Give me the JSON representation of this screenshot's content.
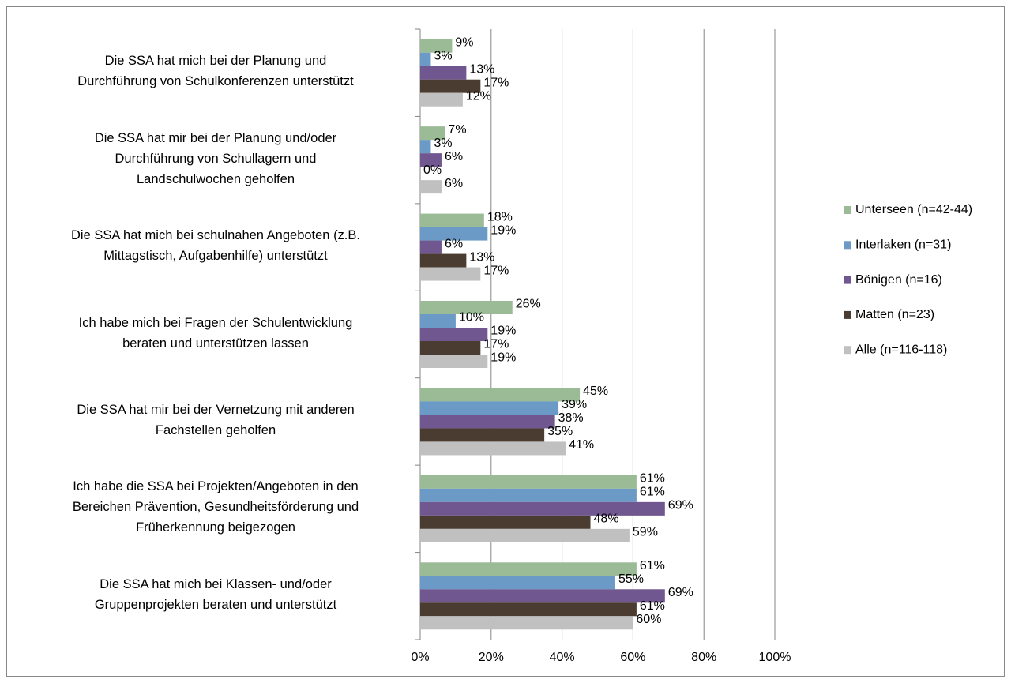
{
  "chart_data": {
    "type": "bar",
    "orientation": "horizontal",
    "categories": [
      "Die SSA hat mich bei der Planung und\nDurchführung von Schulkonferenzen unterstützt",
      "Die SSA hat mir bei der Planung und/oder\nDurchführung von Schullagern und\nLandschulwochen geholfen",
      "Die SSA hat mich bei schulnahen Angeboten (z.B.\nMittagstisch, Aufgabenhilfe) unterstützt",
      "Ich habe mich bei Fragen der Schulentwicklung\nberaten und unterstützen lassen",
      "Die SSA hat mir bei der Vernetzung mit anderen\nFachstellen geholfen",
      "Ich habe die SSA bei Projekten/Angeboten in den\nBereichen Prävention, Gesundheitsförderung und\nFrüherkennung beigezogen",
      "Die SSA hat mich bei Klassen- und/oder\nGruppenprojekten beraten und unterstützt"
    ],
    "series": [
      {
        "name": "Unterseen (n=42-44)",
        "color": "#9bbb97",
        "values": [
          9,
          7,
          18,
          26,
          45,
          61,
          61
        ],
        "value_labels": [
          "9%",
          "7%",
          "18%",
          "26%",
          "45%",
          "61%",
          "61%"
        ]
      },
      {
        "name": "Interlaken (n=31)",
        "color": "#6a9ac5",
        "values": [
          3,
          3,
          19,
          10,
          39,
          61,
          55
        ],
        "value_labels": [
          "3%",
          "3%",
          "19%",
          "10%",
          "39%",
          "61%",
          "55%"
        ]
      },
      {
        "name": "Bönigen (n=16)",
        "color": "#70578f",
        "values": [
          13,
          6,
          6,
          19,
          38,
          69,
          69
        ],
        "value_labels": [
          "13%",
          "6%",
          "6%",
          "19%",
          "38%",
          "69%",
          "69%"
        ]
      },
      {
        "name": "Matten (n=23)",
        "color": "#4a3c31",
        "values": [
          17,
          0,
          13,
          17,
          35,
          48,
          61
        ],
        "value_labels": [
          "17%",
          "0%",
          "13%",
          "17%",
          "35%",
          "48%",
          "61%"
        ]
      },
      {
        "name": "Alle (n=116-118)",
        "color": "#c0c0c0",
        "values": [
          12,
          6,
          17,
          19,
          41,
          59,
          60
        ],
        "value_labels": [
          "12%",
          "6%",
          "17%",
          "19%",
          "41%",
          "59%",
          "60%"
        ]
      }
    ],
    "xlim": [
      0,
      100
    ],
    "xticks": [
      {
        "value": 0,
        "label": "0%"
      },
      {
        "value": 20,
        "label": "20%"
      },
      {
        "value": 40,
        "label": "40%"
      },
      {
        "value": 60,
        "label": "60%"
      },
      {
        "value": 80,
        "label": "80%"
      },
      {
        "value": 100,
        "label": "100%"
      }
    ],
    "grid": true,
    "legend": "right"
  }
}
